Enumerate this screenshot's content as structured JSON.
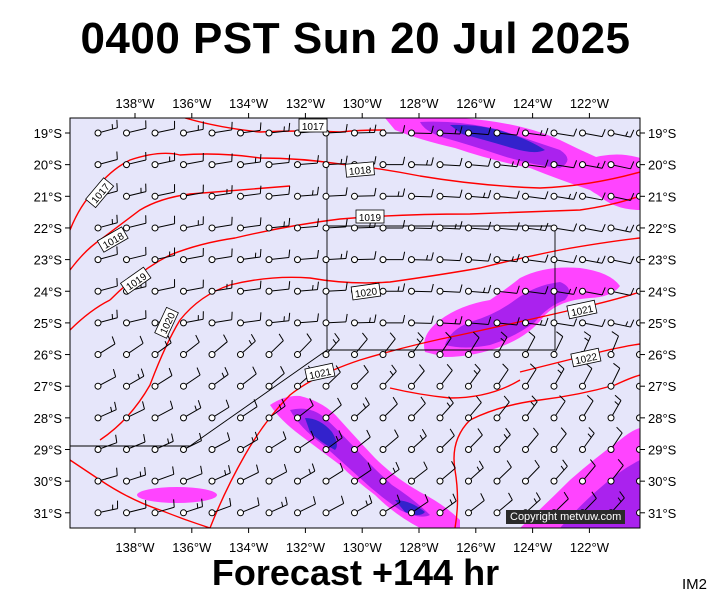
{
  "title": "0400 PST Sun 20 Jul 2025",
  "subtitle": "Forecast +144 hr",
  "image_code": "IM2",
  "credit": "Copyright metvuw.com",
  "colors": {
    "sea_background": "#e6e6fa",
    "isobar": "#ff0000",
    "rain_light": "#ff44ff",
    "rain_medium": "#aa22ee",
    "rain_heavy": "#3322cc",
    "grid_box": "#000000"
  },
  "longitude_labels": [
    "138°W",
    "136°W",
    "134°W",
    "132°W",
    "130°W",
    "128°W",
    "126°W",
    "124°W",
    "122°W"
  ],
  "latitude_labels": [
    "19°S",
    "20°S",
    "21°S",
    "22°S",
    "23°S",
    "24°S",
    "25°S",
    "26°S",
    "27°S",
    "28°S",
    "29°S",
    "30°S",
    "31°S"
  ],
  "isobar_labels": [
    "1017",
    "1018",
    "1017",
    "1018",
    "1019",
    "1019",
    "1020",
    "1020",
    "1021",
    "1021",
    "1022"
  ]
}
